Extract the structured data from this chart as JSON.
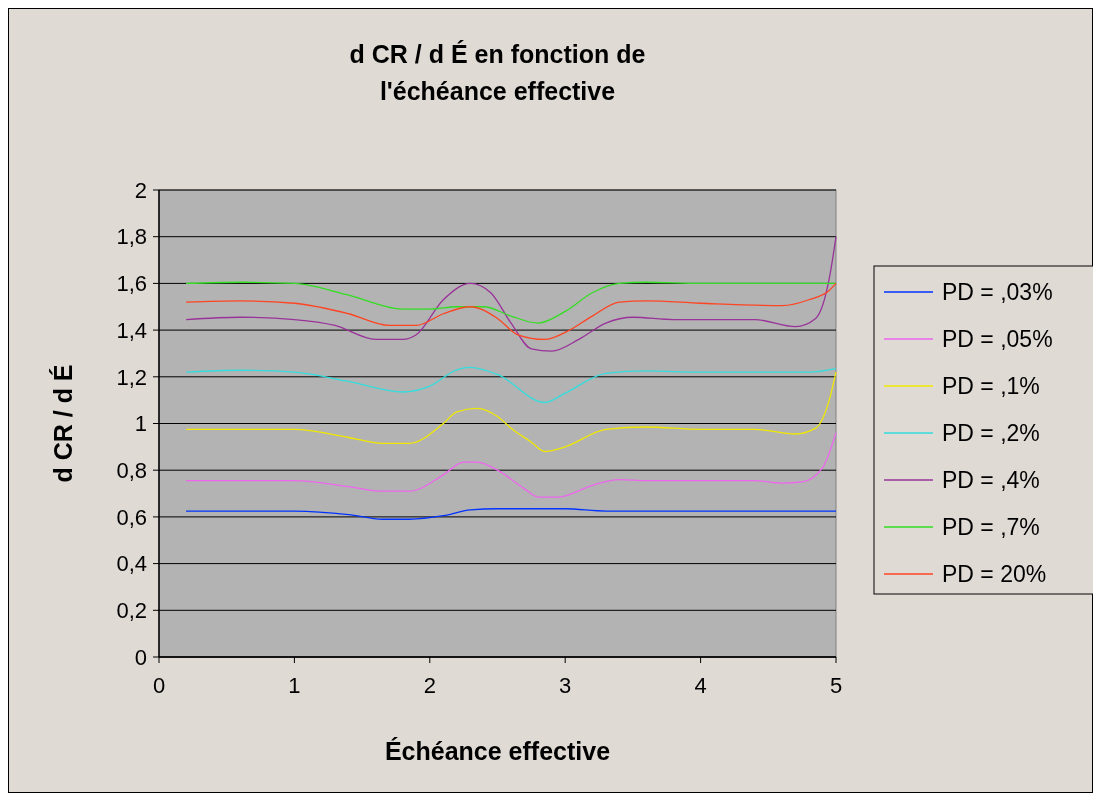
{
  "chart_data": {
    "type": "line",
    "title": "d CR / d É en fonction de\nl'échéance effective",
    "xlabel": "Échéance effective",
    "ylabel": "d CR / d É",
    "xlim": [
      0,
      5
    ],
    "xticks": [
      0,
      1,
      2,
      3,
      4,
      5
    ],
    "ylim": [
      0,
      2
    ],
    "yticks": [
      0,
      {
        "value": 0.2,
        "label": "0,2"
      },
      {
        "value": 0.4,
        "label": "0,4"
      },
      {
        "value": 0.6,
        "label": "0,6"
      },
      {
        "value": 0.8,
        "label": "0,8"
      },
      1,
      {
        "value": 1.2,
        "label": "1,2"
      },
      {
        "value": 1.4,
        "label": "1,4"
      },
      {
        "value": 1.6,
        "label": "1,6"
      },
      {
        "value": 1.8,
        "label": "1,8"
      },
      2
    ],
    "grid": "y",
    "legend": "right",
    "marker": "none",
    "line_style": "solid",
    "series": [
      {
        "name": "PD = ,03%",
        "color": "#0033ff",
        "x": [
          0.2,
          1.0,
          1.4,
          1.65,
          1.85,
          2.1,
          2.3,
          2.5,
          3.0,
          3.3,
          5.0
        ],
        "values": [
          0.625,
          0.625,
          0.61,
          0.59,
          0.59,
          0.605,
          0.63,
          0.635,
          0.635,
          0.625,
          0.625
        ]
      },
      {
        "name": "PD = ,05%",
        "color": "#ee66ee",
        "x": [
          0.2,
          1.0,
          1.4,
          1.65,
          1.85,
          2.1,
          2.25,
          2.35,
          2.5,
          2.7,
          2.8,
          2.95,
          3.2,
          3.4,
          3.6,
          4.4,
          4.6,
          4.75,
          4.9,
          5.0
        ],
        "values": [
          0.755,
          0.755,
          0.73,
          0.71,
          0.71,
          0.78,
          0.835,
          0.835,
          0.8,
          0.72,
          0.685,
          0.685,
          0.735,
          0.76,
          0.755,
          0.755,
          0.745,
          0.75,
          0.81,
          0.96
        ]
      },
      {
        "name": "PD = ,1%",
        "color": "#f0e800",
        "x": [
          0.2,
          1.0,
          1.4,
          1.65,
          1.85,
          2.1,
          2.2,
          2.35,
          2.5,
          2.6,
          2.75,
          2.85,
          3.0,
          3.3,
          3.6,
          4.0,
          4.4,
          4.7,
          4.85,
          4.95,
          5.0
        ],
        "values": [
          0.975,
          0.975,
          0.94,
          0.915,
          0.915,
          1.0,
          1.05,
          1.065,
          1.03,
          0.98,
          0.92,
          0.88,
          0.9,
          0.975,
          0.985,
          0.975,
          0.975,
          0.955,
          0.98,
          1.1,
          1.22
        ]
      },
      {
        "name": "PD = ,2%",
        "color": "#33dddd",
        "x": [
          0.2,
          0.6,
          1.0,
          1.4,
          1.8,
          2.0,
          2.2,
          2.3,
          2.5,
          2.85,
          3.0,
          3.3,
          3.6,
          4.0,
          4.8,
          5.0
        ],
        "values": [
          1.22,
          1.228,
          1.22,
          1.18,
          1.135,
          1.16,
          1.23,
          1.24,
          1.21,
          1.09,
          1.13,
          1.215,
          1.225,
          1.22,
          1.22,
          1.235
        ]
      },
      {
        "name": "PD = ,4%",
        "color": "#993399",
        "x": [
          0.2,
          0.6,
          1.0,
          1.3,
          1.6,
          1.8,
          1.9,
          2.1,
          2.3,
          2.45,
          2.6,
          2.75,
          2.9,
          3.1,
          3.3,
          3.5,
          3.8,
          4.4,
          4.7,
          4.85,
          4.95,
          5.0
        ],
        "values": [
          1.445,
          1.455,
          1.445,
          1.42,
          1.36,
          1.36,
          1.38,
          1.53,
          1.6,
          1.56,
          1.43,
          1.32,
          1.31,
          1.36,
          1.43,
          1.455,
          1.445,
          1.445,
          1.415,
          1.45,
          1.62,
          1.8
        ]
      },
      {
        "name": "PD = ,7%",
        "color": "#33dd22",
        "x": [
          0.2,
          0.6,
          1.0,
          1.4,
          1.8,
          2.0,
          2.2,
          2.4,
          2.6,
          2.8,
          3.0,
          3.2,
          3.4,
          3.6,
          4.0,
          4.6,
          5.0
        ],
        "values": [
          1.6,
          1.605,
          1.6,
          1.55,
          1.49,
          1.49,
          1.5,
          1.5,
          1.46,
          1.43,
          1.48,
          1.56,
          1.6,
          1.605,
          1.6,
          1.6,
          1.6
        ]
      },
      {
        "name": "PD = 20%",
        "color": "#ff4422",
        "x": [
          0.2,
          0.6,
          1.0,
          1.4,
          1.7,
          1.9,
          2.1,
          2.3,
          2.5,
          2.65,
          2.85,
          3.0,
          3.2,
          3.4,
          3.6,
          4.0,
          4.6,
          4.8,
          4.95,
          5.0
        ],
        "values": [
          1.52,
          1.525,
          1.515,
          1.47,
          1.42,
          1.42,
          1.47,
          1.5,
          1.45,
          1.38,
          1.36,
          1.39,
          1.46,
          1.52,
          1.525,
          1.515,
          1.505,
          1.53,
          1.57,
          1.6
        ]
      }
    ]
  }
}
